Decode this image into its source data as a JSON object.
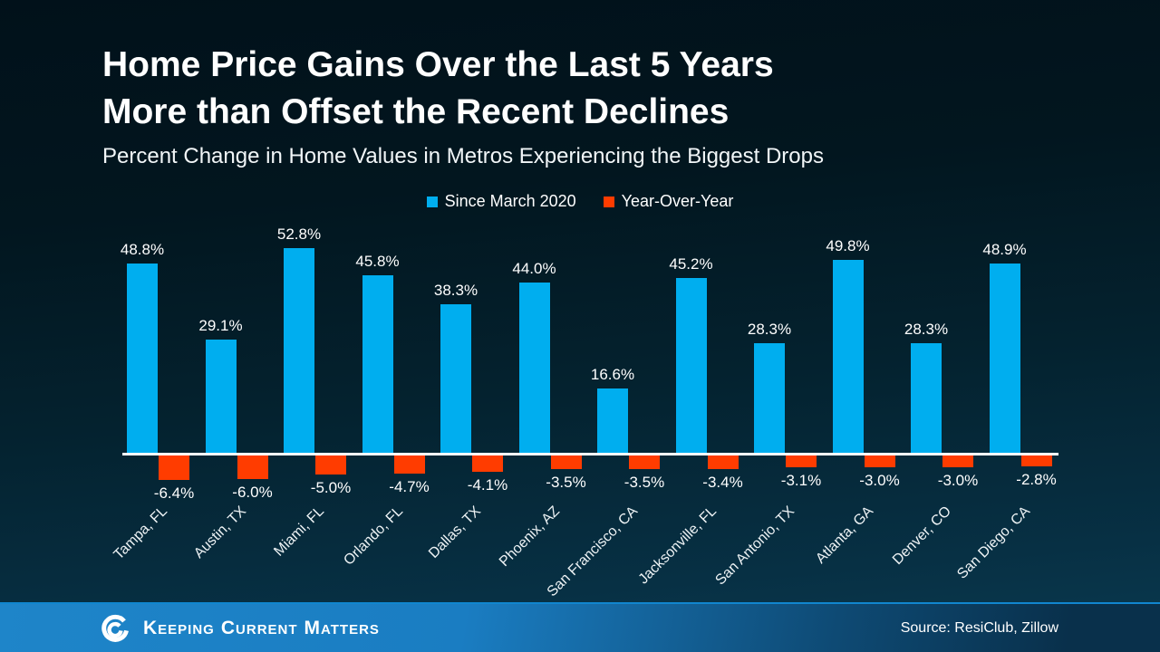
{
  "slide": {
    "title_line1": "Home Price Gains Over the Last 5 Years",
    "title_line2": "More than Offset the Recent Declines",
    "subtitle": "Percent Change in Home Values in Metros Experiencing the Biggest Drops"
  },
  "legend": {
    "items": [
      {
        "label": "Since March 2020",
        "color": "#00AEEF"
      },
      {
        "label": "Year-Over-Year",
        "color": "#FF3C00"
      }
    ]
  },
  "chart_data": {
    "type": "bar",
    "title": "Home Price Gains Over the Last 5 Years More than Offset the Recent Declines",
    "subtitle": "Percent Change in Home Values in Metros Experiencing the Biggest Drops",
    "categories": [
      "Tampa, FL",
      "Austin, TX",
      "Miami, FL",
      "Orlando, FL",
      "Dallas, TX",
      "Phoenix, AZ",
      "San Francisco, CA",
      "Jacksonville, FL",
      "San Antonio, TX",
      "Atlanta, GA",
      "Denver, CO",
      "San Diego, CA"
    ],
    "series": [
      {
        "name": "Since March 2020",
        "color": "#00AEEF",
        "values": [
          48.8,
          29.1,
          52.8,
          45.8,
          38.3,
          44.0,
          16.6,
          45.2,
          28.3,
          49.8,
          28.3,
          48.9
        ],
        "labels": [
          "48.8%",
          "29.1%",
          "52.8%",
          "45.8%",
          "38.3%",
          "44.0%",
          "16.6%",
          "45.2%",
          "28.3%",
          "49.8%",
          "28.3%",
          "48.9%"
        ]
      },
      {
        "name": "Year-Over-Year",
        "color": "#FF3C00",
        "values": [
          -6.4,
          -6.0,
          -5.0,
          -4.7,
          -4.1,
          -3.5,
          -3.5,
          -3.4,
          -3.1,
          -3.0,
          -3.0,
          -2.8
        ],
        "labels": [
          "-6.4%",
          "-6.0%",
          "-5.0%",
          "-4.7%",
          "-4.1%",
          "-3.5%",
          "-3.5%",
          "-3.4%",
          "-3.1%",
          "-3.0%",
          "-3.0%",
          "-2.8%"
        ]
      }
    ],
    "ylim": [
      -10,
      56
    ],
    "grid": false,
    "axis_line_color": "#FFFFFF",
    "legend_position": "top-center",
    "value_labels_shown": true,
    "category_label_rotation_deg": 45
  },
  "colors": {
    "background_top": "#02161F",
    "background_bottom": "#0A3A50",
    "bar_positive": "#00AEEF",
    "bar_negative": "#FF3C00",
    "text": "#FFFFFF",
    "footer_left": "#1A7DC2",
    "footer_right": "#09304B"
  },
  "footer": {
    "brand": "Keeping Current Matters",
    "source": "Source: ResiClub, Zillow"
  }
}
